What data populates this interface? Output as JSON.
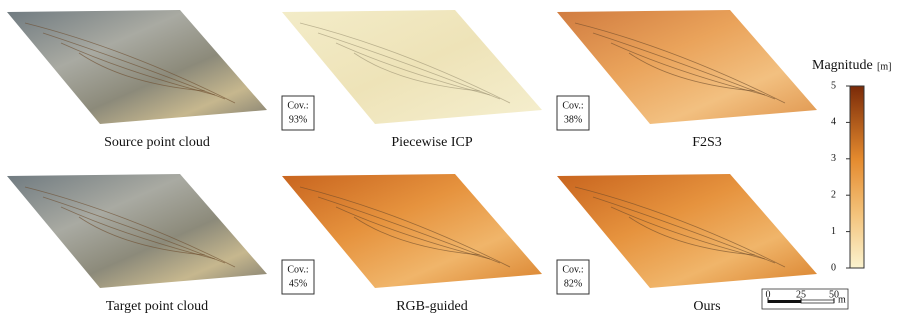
{
  "panels": [
    {
      "caption": "Source point cloud"
    },
    {
      "caption": "Piecewise ICP",
      "coverage": {
        "label": "Cov.:",
        "value": "93%"
      }
    },
    {
      "caption": "F2S3",
      "coverage": {
        "label": "Cov.:",
        "value": "38%"
      }
    },
    {
      "caption": "Target point cloud"
    },
    {
      "caption": "RGB-guided",
      "coverage": {
        "label": "Cov.:",
        "value": "45%"
      }
    },
    {
      "caption": "Ours",
      "coverage": {
        "label": "Cov.:",
        "value": "82%"
      }
    }
  ],
  "colorbar": {
    "title": "Magnitude",
    "unit": "[m]",
    "lim": [
      0,
      5
    ],
    "ticks": [
      0,
      1,
      2,
      3,
      4,
      5
    ]
  },
  "scale_bar": {
    "ticks": [
      0,
      25,
      50
    ],
    "unit": "m"
  }
}
